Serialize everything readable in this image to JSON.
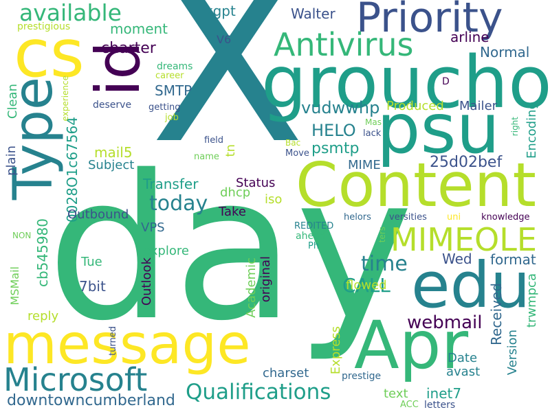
{
  "palette": {
    "dark_purple": "#440154",
    "indigo": "#3b528b",
    "slate": "#31688e",
    "teal": "#26828e",
    "sea": "#1f9e89",
    "green": "#35b779",
    "lime": "#6ece58",
    "yellowgreen": "#b5de2b",
    "yellow": "#fde725"
  },
  "words": [
    {
      "text": "X",
      "color": "#26828e"
    },
    {
      "text": "day",
      "color": "#35b779"
    },
    {
      "text": "groucho",
      "color": "#1f9e89"
    },
    {
      "text": "Content",
      "color": "#b5de2b"
    },
    {
      "text": "psu",
      "color": "#1f9e89"
    },
    {
      "text": "edu",
      "color": "#26828e"
    },
    {
      "text": "message",
      "color": "#fde725"
    },
    {
      "text": "Apr",
      "color": "#35b779"
    },
    {
      "text": "Priority",
      "color": "#3b528b"
    },
    {
      "text": "cs",
      "color": "#fde725"
    },
    {
      "text": "Type",
      "color": "#26828e"
    },
    {
      "text": "id",
      "color": "#440154"
    },
    {
      "text": "Microsoft",
      "color": "#26828e"
    },
    {
      "text": "Antivirus",
      "color": "#35b779"
    },
    {
      "text": "MIMEOLE",
      "color": "#b5de2b"
    },
    {
      "text": "available",
      "color": "#35b779"
    },
    {
      "text": "Qualifications",
      "color": "#1f9e89"
    },
    {
      "text": "downtowncumberland",
      "color": "#31688e"
    },
    {
      "text": "today",
      "color": "#26828e"
    },
    {
      "text": "time",
      "color": "#26828e"
    },
    {
      "text": "CALL",
      "color": "#1f9e89"
    },
    {
      "text": "webmail",
      "color": "#440154"
    },
    {
      "text": "HELO",
      "color": "#26828e"
    },
    {
      "text": "vudwwhp",
      "color": "#26828e"
    },
    {
      "text": "25d02bef",
      "color": "#3b528b"
    },
    {
      "text": "psmtp",
      "color": "#1f9e89"
    },
    {
      "text": "charter",
      "color": "#440154"
    },
    {
      "text": "moment",
      "color": "#35b779"
    },
    {
      "text": "kgpt",
      "color": "#26828e"
    },
    {
      "text": "Walter",
      "color": "#3b528b"
    },
    {
      "text": "arline",
      "color": "#440154"
    },
    {
      "text": "Normal",
      "color": "#31688e"
    },
    {
      "text": "Mailer",
      "color": "#3b528b"
    },
    {
      "text": "Produced",
      "color": "#b5de2b"
    },
    {
      "text": "Encoding",
      "color": "#1f9e89"
    },
    {
      "text": "SMTP",
      "color": "#31688e"
    },
    {
      "text": "V6",
      "color": "#3b528b"
    },
    {
      "text": "Clean",
      "color": "#35b779"
    },
    {
      "text": "0028O1c67564",
      "color": "#1f9e89"
    },
    {
      "text": "mail5",
      "color": "#b5de2b"
    },
    {
      "text": "Subject",
      "color": "#26828e"
    },
    {
      "text": "plain",
      "color": "#3b528b"
    },
    {
      "text": "tn",
      "color": "#b5de2b"
    },
    {
      "text": "Transfer",
      "color": "#1f9e89"
    },
    {
      "text": "dhcp",
      "color": "#6ece58"
    },
    {
      "text": "Status",
      "color": "#440154"
    },
    {
      "text": "iso",
      "color": "#b5de2b"
    },
    {
      "text": "Take",
      "color": "#440154"
    },
    {
      "text": "MIME",
      "color": "#31688e"
    },
    {
      "text": "Outbound",
      "color": "#3b528b"
    },
    {
      "text": "VPS",
      "color": "#31688e"
    },
    {
      "text": "cb545980",
      "color": "#35b779"
    },
    {
      "text": "explore",
      "color": "#35b779"
    },
    {
      "text": "Tue",
      "color": "#35b779"
    },
    {
      "text": "Outlook",
      "color": "#440154"
    },
    {
      "text": "7bit",
      "color": "#3b528b"
    },
    {
      "text": "Academic",
      "color": "#6ece58"
    },
    {
      "text": "original",
      "color": "#440154"
    },
    {
      "text": "Wed",
      "color": "#3b528b"
    },
    {
      "text": "format",
      "color": "#31688e"
    },
    {
      "text": "flowed",
      "color": "#b5de2b"
    },
    {
      "text": "Received",
      "color": "#31688e"
    },
    {
      "text": "trwmpca",
      "color": "#35b779"
    },
    {
      "text": "Version",
      "color": "#26828e"
    },
    {
      "text": "Date",
      "color": "#26828e"
    },
    {
      "text": "avast",
      "color": "#26828e"
    },
    {
      "text": "Express",
      "color": "#b5de2b"
    },
    {
      "text": "charset",
      "color": "#31688e"
    },
    {
      "text": "text",
      "color": "#6ece58"
    },
    {
      "text": "inet7",
      "color": "#1f9e89"
    },
    {
      "text": "reply",
      "color": "#b5de2b"
    },
    {
      "text": "MSMail",
      "color": "#6ece58"
    },
    {
      "text": "prestige",
      "color": "#31688e"
    },
    {
      "text": "letters",
      "color": "#3b528b"
    },
    {
      "text": "ACC",
      "color": "#6ece58"
    },
    {
      "text": "turned",
      "color": "#3b528b"
    },
    {
      "text": "prestigious",
      "color": "#b5de2b"
    },
    {
      "text": "dreams",
      "color": "#35b779"
    },
    {
      "text": "career",
      "color": "#b5de2b"
    },
    {
      "text": "D",
      "color": "#440154"
    },
    {
      "text": "deserve",
      "color": "#3b528b"
    },
    {
      "text": "getting",
      "color": "#3b528b"
    },
    {
      "text": "job",
      "color": "#b5de2b"
    },
    {
      "text": "experience",
      "color": "#b5de2b"
    },
    {
      "text": "Mas",
      "color": "#6ece58"
    },
    {
      "text": "lack",
      "color": "#3b528b"
    },
    {
      "text": "right",
      "color": "#35b779"
    },
    {
      "text": "field",
      "color": "#3b528b"
    },
    {
      "text": "Bac",
      "color": "#b5de2b"
    },
    {
      "text": "Move",
      "color": "#3b528b"
    },
    {
      "text": "name",
      "color": "#6ece58"
    },
    {
      "text": "REDITED",
      "color": "#26828e"
    },
    {
      "text": "ahead",
      "color": "#35b779"
    },
    {
      "text": "Ph",
      "color": "#1f9e89"
    },
    {
      "text": "helors",
      "color": "#31688e"
    },
    {
      "text": "versities",
      "color": "#3b528b"
    },
    {
      "text": "uni",
      "color": "#fde725"
    },
    {
      "text": "knowledge",
      "color": "#440154"
    },
    {
      "text": "ters",
      "color": "#6ece58"
    },
    {
      "text": "NON",
      "color": "#6ece58"
    }
  ]
}
